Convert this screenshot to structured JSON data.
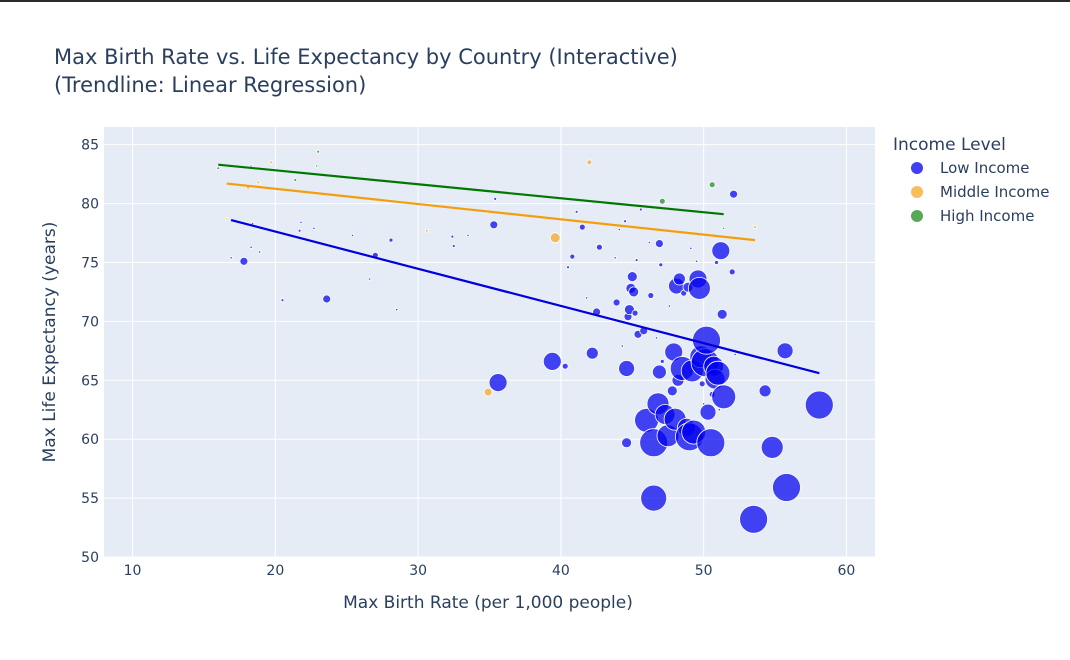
{
  "chart_data": {
    "type": "scatter",
    "title_line1": "Max Birth Rate vs. Life Expectancy by Country (Interactive)",
    "title_line2": "(Trendline: Linear Regression)",
    "xlabel": "Max Birth Rate (per 1,000 people)",
    "ylabel": "Max Life Expectancy (years)",
    "xlim": [
      8,
      62
    ],
    "ylim": [
      50,
      86.5
    ],
    "x_ticks": [
      10,
      20,
      30,
      40,
      50,
      60
    ],
    "y_ticks": [
      50,
      55,
      60,
      65,
      70,
      75,
      80,
      85
    ],
    "grid": true,
    "legend": {
      "title": "Income Level",
      "placement": "top-right"
    },
    "colors": {
      "Low Income": "#0000ee",
      "Middle Income": "#f5a623",
      "High Income": "#1f8b1f"
    },
    "trend_colors": {
      "Low Income": "#0000dd",
      "Middle Income": "#f59e0b",
      "High Income": "#007800"
    },
    "series": [
      {
        "name": "Low Income",
        "points": [
          [
            16.9,
            75.4,
            1
          ],
          [
            17.8,
            75.1,
            4
          ],
          [
            18.3,
            76.3,
            1
          ],
          [
            18.9,
            75.9,
            1
          ],
          [
            18.4,
            78.3,
            0.5
          ],
          [
            20.5,
            71.8,
            1.5
          ],
          [
            21.7,
            77.7,
            1.5
          ],
          [
            21.8,
            78.4,
            0.5
          ],
          [
            22.7,
            77.9,
            1
          ],
          [
            23.6,
            71.9,
            4
          ],
          [
            25.4,
            77.3,
            0.5
          ],
          [
            26.6,
            73.6,
            0.5
          ],
          [
            27.0,
            75.6,
            3
          ],
          [
            28.1,
            76.9,
            2
          ],
          [
            28.5,
            71.0,
            0.5
          ],
          [
            32.4,
            77.2,
            1.5
          ],
          [
            32.5,
            76.4,
            1.5
          ],
          [
            33.5,
            77.3,
            1
          ],
          [
            35.3,
            78.2,
            4
          ],
          [
            35.4,
            80.4,
            1.5
          ],
          [
            35.6,
            64.8,
            9
          ],
          [
            39.4,
            66.6,
            9
          ],
          [
            40.3,
            66.2,
            3
          ],
          [
            40.5,
            74.6,
            1.5
          ],
          [
            40.8,
            75.5,
            2.5
          ],
          [
            41.1,
            79.3,
            1.5
          ],
          [
            41.5,
            78.0,
            3
          ],
          [
            41.8,
            72.0,
            0.5
          ],
          [
            42.2,
            67.3,
            6
          ],
          [
            42.5,
            70.8,
            4
          ],
          [
            42.7,
            76.3,
            3
          ],
          [
            43.8,
            75.4,
            1
          ],
          [
            43.9,
            71.6,
            3.5
          ],
          [
            44.1,
            77.8,
            0.5
          ],
          [
            44.3,
            67.9,
            1
          ],
          [
            44.5,
            78.5,
            1.5
          ],
          [
            44.6,
            59.7,
            5
          ],
          [
            44.6,
            66.0,
            8
          ],
          [
            44.7,
            70.4,
            4
          ],
          [
            44.8,
            71.0,
            5
          ],
          [
            44.9,
            72.8,
            5
          ],
          [
            45.0,
            73.8,
            5
          ],
          [
            45.1,
            72.5,
            5
          ],
          [
            45.2,
            70.7,
            3
          ],
          [
            45.3,
            75.2,
            1.5
          ],
          [
            45.4,
            68.9,
            4
          ],
          [
            45.6,
            79.5,
            1.5
          ],
          [
            45.8,
            69.2,
            4
          ],
          [
            46.0,
            61.6,
            12
          ],
          [
            46.2,
            76.7,
            1
          ],
          [
            46.3,
            72.2,
            3
          ],
          [
            46.5,
            55.0,
            13
          ],
          [
            46.5,
            59.7,
            14
          ],
          [
            46.7,
            68.6,
            1
          ],
          [
            46.8,
            63.0,
            11
          ],
          [
            46.9,
            65.7,
            7
          ],
          [
            46.9,
            76.6,
            4
          ],
          [
            47.0,
            74.8,
            2
          ],
          [
            47.1,
            66.6,
            2
          ],
          [
            47.3,
            62.1,
            10
          ],
          [
            47.5,
            60.3,
            11
          ],
          [
            47.6,
            71.3,
            1
          ],
          [
            47.8,
            64.1,
            5
          ],
          [
            47.9,
            67.4,
            9
          ],
          [
            48.0,
            61.7,
            11
          ],
          [
            48.1,
            73.0,
            8
          ],
          [
            48.2,
            65.0,
            6
          ],
          [
            48.3,
            73.6,
            6
          ],
          [
            48.5,
            66.0,
            12
          ],
          [
            48.6,
            72.4,
            3
          ],
          [
            48.8,
            61.0,
            9
          ],
          [
            48.9,
            72.9,
            5
          ],
          [
            49.0,
            60.2,
            14
          ],
          [
            49.1,
            76.2,
            1
          ],
          [
            49.2,
            65.8,
            11
          ],
          [
            49.3,
            60.6,
            12
          ],
          [
            49.5,
            75.1,
            1
          ],
          [
            49.6,
            73.6,
            9
          ],
          [
            49.7,
            72.8,
            11
          ],
          [
            49.8,
            67.0,
            11
          ],
          [
            49.9,
            64.7,
            3
          ],
          [
            50.0,
            63.0,
            1
          ],
          [
            50.1,
            66.5,
            14
          ],
          [
            50.2,
            68.4,
            14
          ],
          [
            50.3,
            62.3,
            8
          ],
          [
            50.5,
            59.7,
            14
          ],
          [
            50.6,
            63.8,
            3
          ],
          [
            50.7,
            66.2,
            10
          ],
          [
            50.8,
            65.1,
            10
          ],
          [
            50.9,
            75.0,
            2
          ],
          [
            51.0,
            65.6,
            12
          ],
          [
            51.1,
            62.5,
            1
          ],
          [
            51.2,
            76.0,
            9
          ],
          [
            51.3,
            70.6,
            5
          ],
          [
            51.4,
            63.6,
            12
          ],
          [
            52.0,
            74.2,
            3
          ],
          [
            52.1,
            80.8,
            4
          ],
          [
            52.2,
            67.2,
            1
          ],
          [
            53.5,
            53.2,
            14
          ],
          [
            54.3,
            64.1,
            6
          ],
          [
            54.8,
            59.3,
            11
          ],
          [
            55.7,
            67.5,
            8
          ],
          [
            55.8,
            55.9,
            14
          ],
          [
            58.1,
            62.9,
            14
          ]
        ]
      },
      {
        "name": "Middle Income",
        "points": [
          [
            16.6,
            78.7,
            0.5
          ],
          [
            18.1,
            81.4,
            2
          ],
          [
            18.8,
            81.8,
            1.5
          ],
          [
            19.7,
            83.5,
            1.5
          ],
          [
            26.2,
            82.9,
            1
          ],
          [
            30.6,
            77.7,
            1.5
          ],
          [
            34.8,
            79.3,
            1
          ],
          [
            34.9,
            64.0,
            4
          ],
          [
            39.6,
            77.1,
            5
          ],
          [
            42.0,
            83.5,
            2.5
          ],
          [
            53.6,
            78.0,
            1.5
          ]
        ]
      },
      {
        "name": "High Income",
        "points": [
          [
            16.0,
            83.0,
            1.5
          ],
          [
            18.3,
            83.2,
            0.3
          ],
          [
            21.4,
            82.0,
            1.5
          ],
          [
            22.9,
            83.2,
            1
          ],
          [
            23.0,
            84.4,
            1.5
          ],
          [
            47.1,
            80.2,
            3
          ],
          [
            50.6,
            81.6,
            3
          ],
          [
            51.4,
            77.9,
            1
          ]
        ]
      }
    ],
    "trendlines": [
      {
        "name": "Low Income",
        "x": [
          16.9,
          58.1
        ],
        "y": [
          78.6,
          65.6
        ]
      },
      {
        "name": "Middle Income",
        "x": [
          16.6,
          53.6
        ],
        "y": [
          81.7,
          76.9
        ]
      },
      {
        "name": "High Income",
        "x": [
          16.0,
          51.4
        ],
        "y": [
          83.3,
          79.1
        ]
      }
    ]
  }
}
